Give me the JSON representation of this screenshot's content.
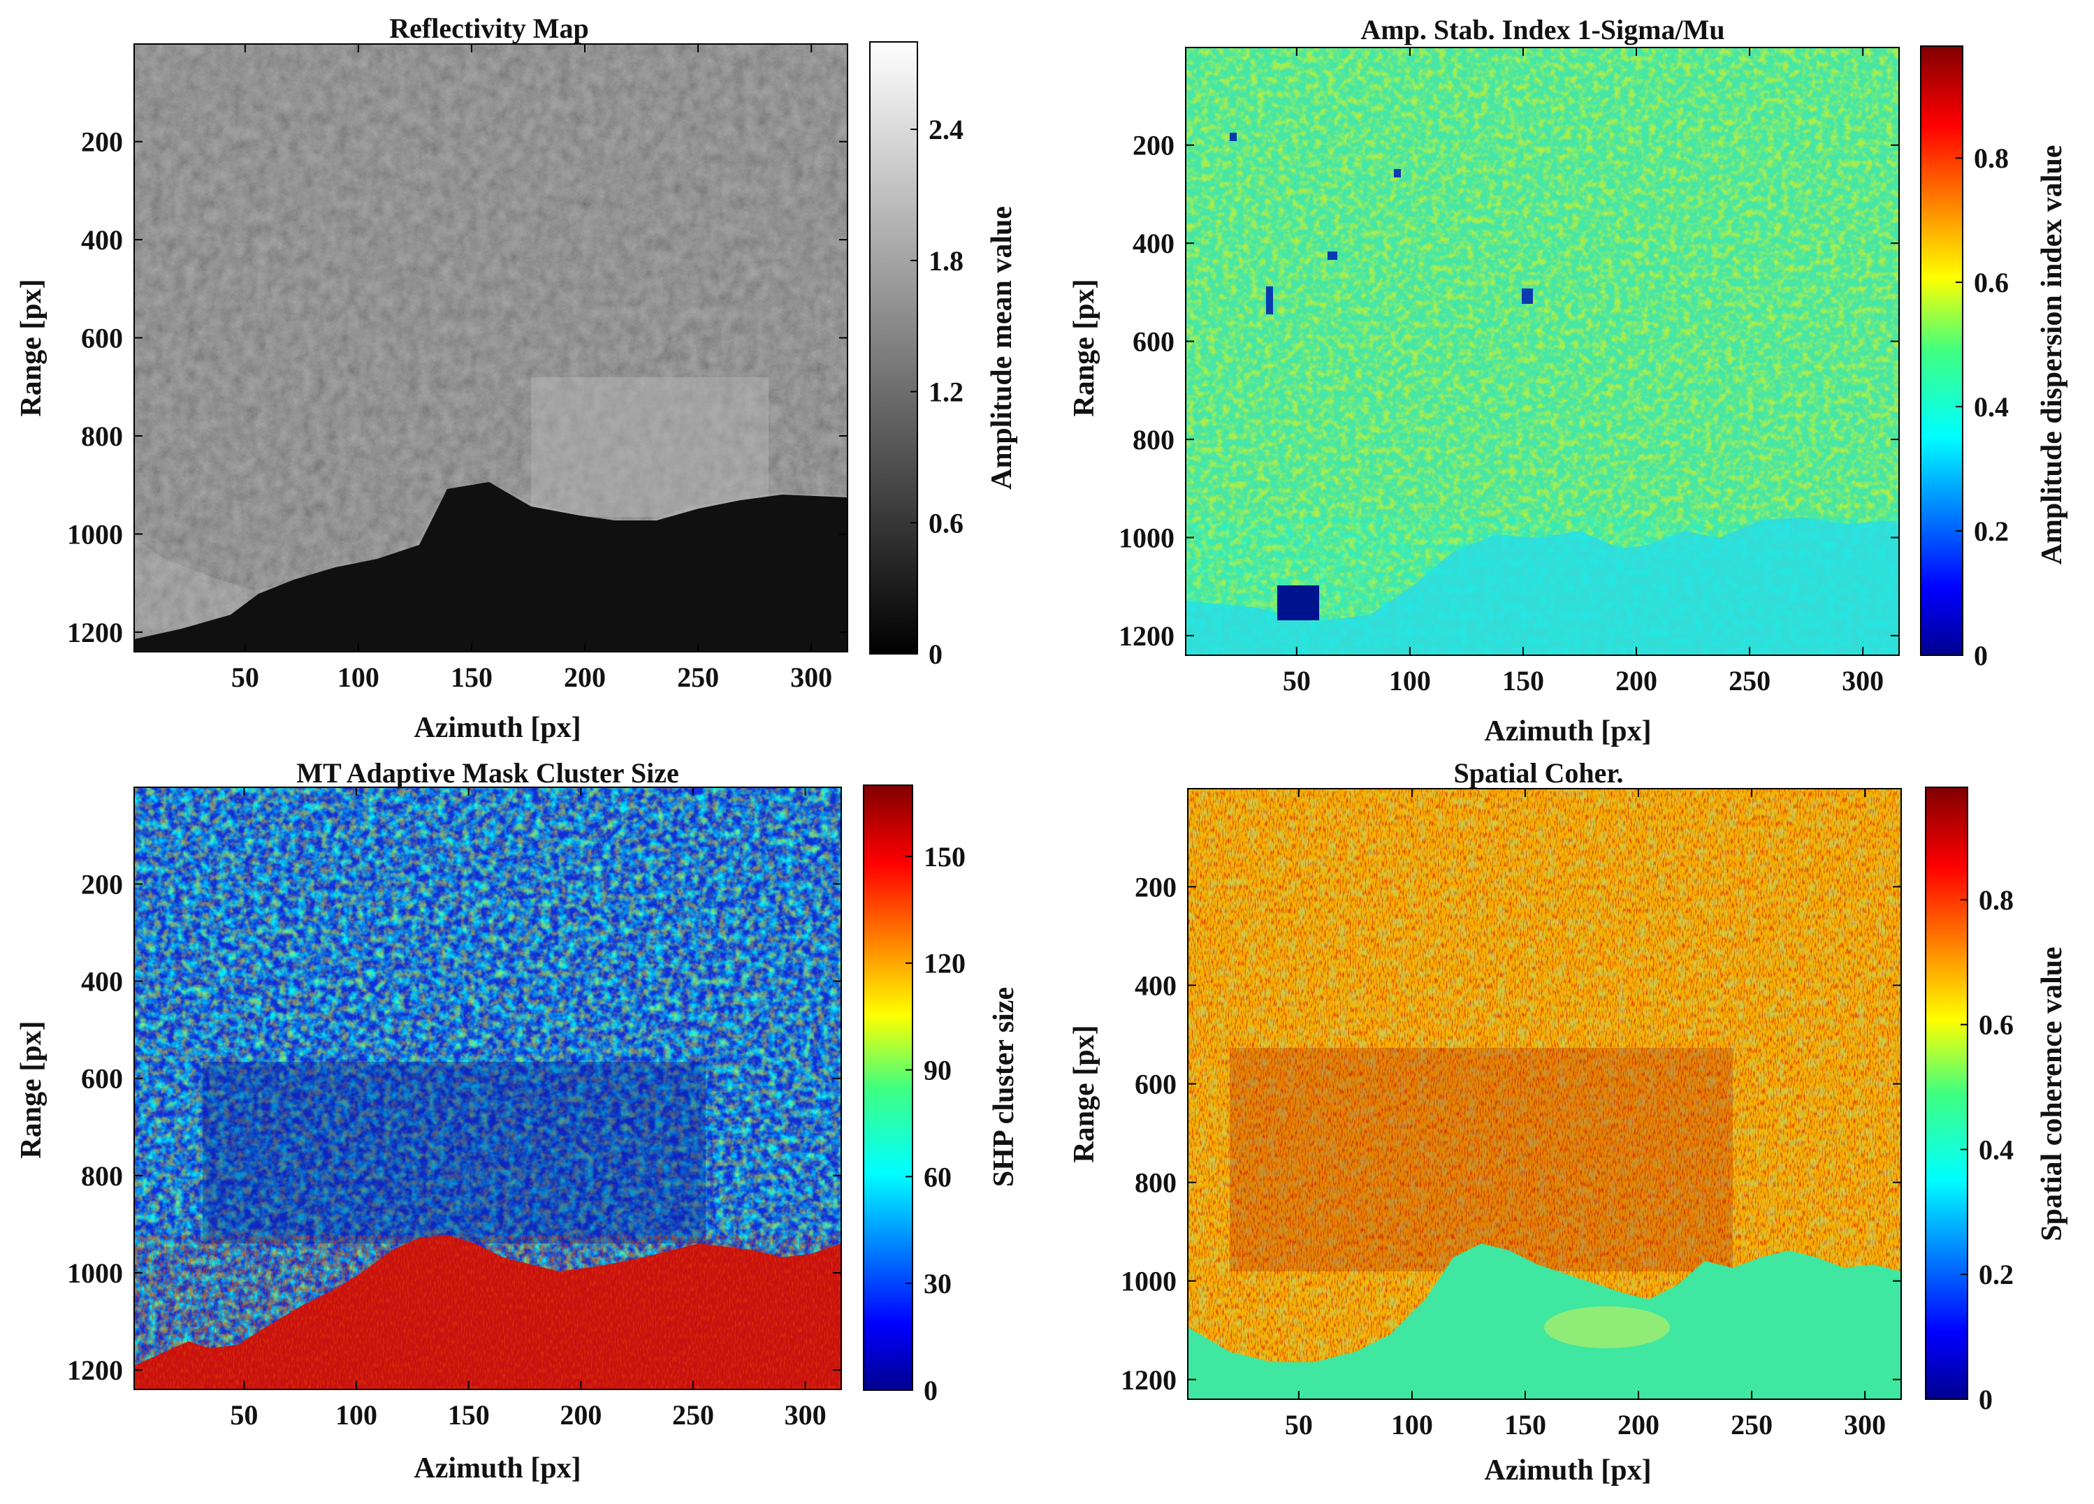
{
  "chart_data": [
    {
      "type": "heatmap",
      "title": "Reflectivity Map",
      "xlabel": "Azimuth [px]",
      "ylabel": "Range [px]",
      "xlim": [
        1,
        316
      ],
      "ylim": [
        1,
        1240
      ],
      "x_ticks": [
        50,
        100,
        150,
        200,
        250,
        300
      ],
      "y_ticks": [
        200,
        400,
        600,
        800,
        1000,
        1200
      ],
      "colorbar": {
        "label": "Amplitude mean value",
        "colormap": "gray",
        "range": [
          0,
          2.8
        ],
        "ticks": [
          0,
          0.6,
          1.2,
          1.8,
          2.4
        ],
        "tick_labels": [
          "0",
          "0.6",
          "1.2",
          "1.8",
          "2.4"
        ]
      }
    },
    {
      "type": "heatmap",
      "title": "Amp. Stab. Index 1-Sigma/Mu",
      "xlabel": "Azimuth [px]",
      "ylabel": "Range [px]",
      "xlim": [
        1,
        316
      ],
      "ylim": [
        1,
        1240
      ],
      "x_ticks": [
        50,
        100,
        150,
        200,
        250,
        300
      ],
      "y_ticks": [
        200,
        400,
        600,
        800,
        1000,
        1200
      ],
      "colorbar": {
        "label": "Amplitude dispersion index value",
        "colormap": "jet",
        "range": [
          0,
          0.98
        ],
        "ticks": [
          0,
          0.2,
          0.4,
          0.6,
          0.8
        ],
        "tick_labels": [
          "0",
          "0.2",
          "0.4",
          "0.6",
          "0.8"
        ]
      }
    },
    {
      "type": "heatmap",
      "title": "MT Adaptive Mask Cluster Size",
      "xlabel": "Azimuth [px]",
      "ylabel": "Range [px]",
      "xlim": [
        1,
        316
      ],
      "ylim": [
        1,
        1240
      ],
      "x_ticks": [
        50,
        100,
        150,
        200,
        250,
        300
      ],
      "y_ticks": [
        200,
        400,
        600,
        800,
        1000,
        1200
      ],
      "colorbar": {
        "label": "SHP cluster size",
        "colormap": "jet",
        "range": [
          0,
          170
        ],
        "ticks": [
          0,
          30,
          60,
          90,
          120,
          150
        ],
        "tick_labels": [
          "0",
          "30",
          "60",
          "90",
          "120",
          "150"
        ]
      }
    },
    {
      "type": "heatmap",
      "title": "Spatial Coher.",
      "xlabel": "Azimuth [px]",
      "ylabel": "Range [px]",
      "xlim": [
        1,
        316
      ],
      "ylim": [
        1,
        1240
      ],
      "x_ticks": [
        50,
        100,
        150,
        200,
        250,
        300
      ],
      "y_ticks": [
        200,
        400,
        600,
        800,
        1000,
        1200
      ],
      "colorbar": {
        "label": "Spatial coherence value",
        "colormap": "jet",
        "range": [
          0,
          0.98
        ],
        "ticks": [
          0,
          0.2,
          0.4,
          0.6,
          0.8
        ],
        "tick_labels": [
          "0",
          "0.2",
          "0.4",
          "0.6",
          "0.8"
        ]
      }
    }
  ]
}
